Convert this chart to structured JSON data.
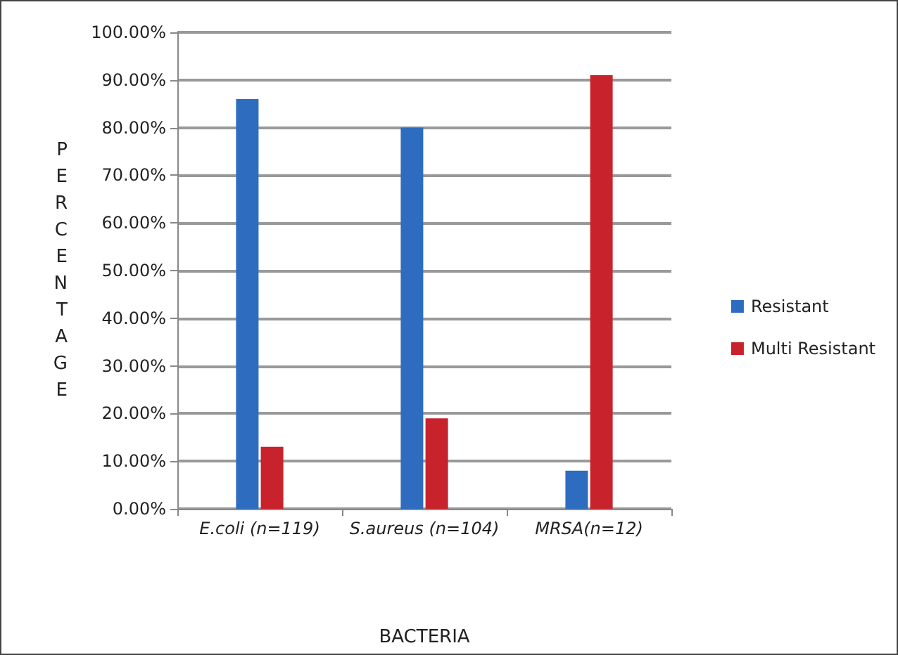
{
  "chart_data": {
    "type": "bar",
    "xlabel": "BACTERIA",
    "ylabel": "PERCENTAGE",
    "categories": [
      "E.coli (n=119)",
      "S.aureus (n=104)",
      "MRSA(n=12)"
    ],
    "series": [
      {
        "name": "Resistant",
        "color": "#2e6cc0",
        "values": [
          86,
          80,
          8
        ]
      },
      {
        "name": "Multi Resistant",
        "color": "#c8232c",
        "values": [
          13,
          19,
          91
        ]
      }
    ],
    "ylim": [
      0,
      100
    ],
    "yticks": [
      {
        "value": 0,
        "label": "0.00%"
      },
      {
        "value": 10,
        "label": "10.00%"
      },
      {
        "value": 20,
        "label": "20.00%"
      },
      {
        "value": 30,
        "label": "30.00%"
      },
      {
        "value": 40,
        "label": "40.00%"
      },
      {
        "value": 50,
        "label": "50.00%"
      },
      {
        "value": 60,
        "label": "60.00%"
      },
      {
        "value": 70,
        "label": "70.00%"
      },
      {
        "value": 80,
        "label": "80.00%"
      },
      {
        "value": 90,
        "label": "90.00%"
      },
      {
        "value": 100,
        "label": "100.00%"
      }
    ],
    "grid": "y",
    "legend": "right"
  }
}
